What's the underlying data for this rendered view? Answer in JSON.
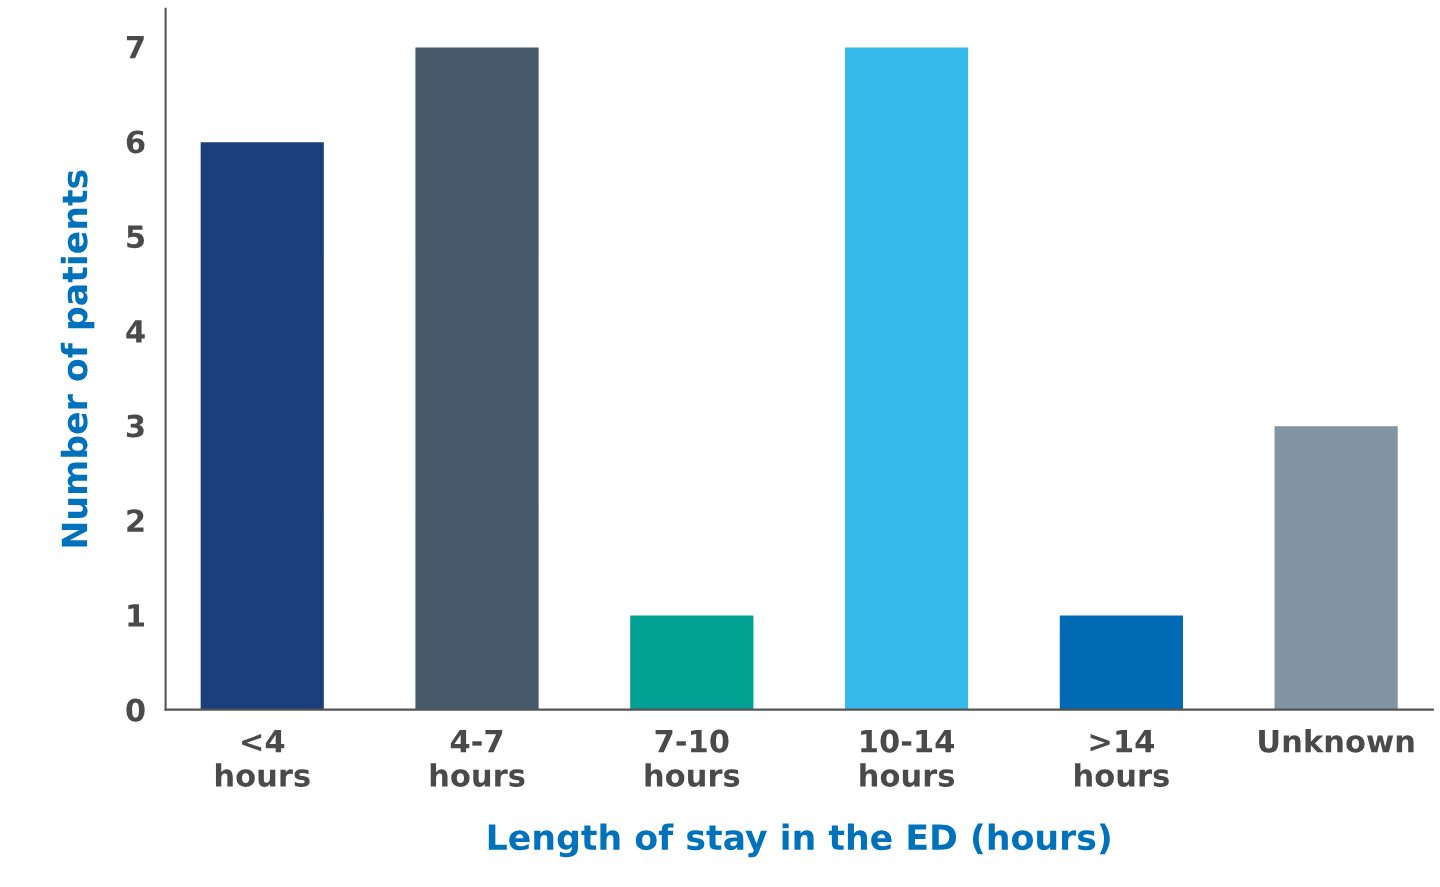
{
  "chart_data": {
    "type": "bar",
    "xlabel": "Length of stay in the ED (hours)",
    "ylabel": "Number of patients",
    "categories": [
      "<4\nhours",
      "4-7\nhours",
      "7-10\nhours",
      "10-14\nhours",
      ">14\nhours",
      "Unknown"
    ],
    "values": [
      6,
      7,
      1,
      7,
      1,
      3
    ],
    "colors": [
      "#1b3f7a",
      "#465a6b",
      "#00a093",
      "#36baec",
      "#0069b4",
      "#8395a3"
    ],
    "ylim": [
      0,
      7.4
    ],
    "yticks": [
      0,
      1,
      2,
      3,
      4,
      5,
      6,
      7
    ],
    "grid": false
  }
}
